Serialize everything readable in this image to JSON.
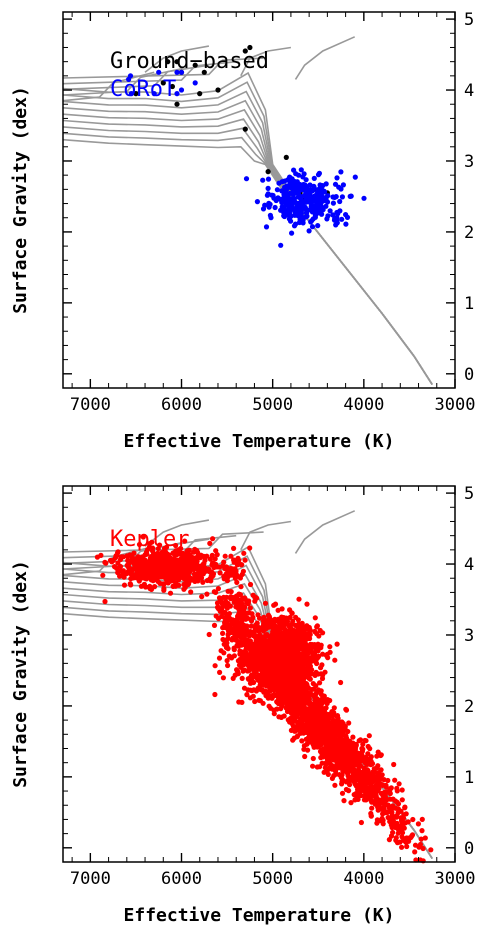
{
  "figure": {
    "panels": [
      {
        "id": "top",
        "legend": [
          {
            "text": "Ground−based",
            "color": "#000000"
          },
          {
            "text": "CoRoT",
            "color": "#0000ff"
          }
        ]
      },
      {
        "id": "bottom",
        "legend": [
          {
            "text": "Kepler",
            "color": "#ff0000"
          }
        ]
      }
    ]
  },
  "chart_data": [
    {
      "type": "scatter",
      "xlabel": "Effective Temperature (K)",
      "ylabel": "Surface Gravity (dex)",
      "xlim": [
        7300,
        3000
      ],
      "ylim": [
        5.1,
        -0.2
      ],
      "x_ticks": [
        7000,
        6000,
        5000,
        4000,
        3000
      ],
      "y_ticks": [
        0,
        1,
        2,
        3,
        4,
        5
      ],
      "x_tick_labels": [
        "7000",
        "6000",
        "5000",
        "4000",
        "3000"
      ],
      "y_tick_labels": [
        "0",
        "1",
        "2",
        "3",
        "4",
        "5"
      ],
      "grid": false,
      "legend_position": "top-left",
      "background_curves_color": "#999999",
      "series": [
        {
          "name": "Ground−based",
          "color": "#000000",
          "points": [
            [
              4850,
              2.45
            ],
            [
              4650,
              2.45
            ],
            [
              4500,
              2.45
            ],
            [
              4550,
              2.3
            ],
            [
              4700,
              2.55
            ],
            [
              4550,
              2.6
            ],
            [
              4400,
              2.55
            ],
            [
              4750,
              2.7
            ],
            [
              5050,
              2.85
            ],
            [
              4850,
              3.05
            ],
            [
              5300,
              3.45
            ],
            [
              6500,
              3.95
            ],
            [
              6050,
              3.8
            ],
            [
              5800,
              3.95
            ],
            [
              5600,
              4.0
            ],
            [
              6100,
              4.05
            ],
            [
              6200,
              4.1
            ],
            [
              5750,
              4.25
            ],
            [
              6000,
              4.25
            ],
            [
              5850,
              4.35
            ],
            [
              6150,
              4.4
            ],
            [
              6050,
              4.4
            ],
            [
              5250,
              4.6
            ],
            [
              5300,
              4.55
            ]
          ]
        },
        {
          "name": "CoRoT",
          "color": "#0000ff",
          "center": [
            4650,
            2.45
          ],
          "spread": [
            600,
            0.45
          ],
          "count": 320,
          "extra_points": [
            [
              6550,
              3.95
            ],
            [
              6580,
              4.15
            ],
            [
              6560,
              4.2
            ],
            [
              6300,
              3.95
            ],
            [
              6050,
              3.95
            ],
            [
              6000,
              4.0
            ],
            [
              6250,
              4.25
            ],
            [
              6050,
              4.25
            ],
            [
              6000,
              4.25
            ],
            [
              5850,
              4.1
            ]
          ]
        }
      ]
    },
    {
      "type": "scatter",
      "xlabel": "Effective Temperature (K)",
      "ylabel": "Surface Gravity (dex)",
      "xlim": [
        7300,
        3000
      ],
      "ylim": [
        5.1,
        -0.2
      ],
      "x_ticks": [
        7000,
        6000,
        5000,
        4000,
        3000
      ],
      "y_ticks": [
        0,
        1,
        2,
        3,
        4,
        5
      ],
      "x_tick_labels": [
        "7000",
        "6000",
        "5000",
        "4000",
        "3000"
      ],
      "y_tick_labels": [
        "0",
        "1",
        "2",
        "3",
        "4",
        "5"
      ],
      "grid": false,
      "legend_position": "top-left",
      "background_curves_color": "#999999",
      "series": [
        {
          "name": "Kepler",
          "color": "#ff0000",
          "clusters": [
            {
              "center": [
                4450,
                1.65
              ],
              "spread": [
                750,
                1.2
              ],
              "count": 1800,
              "correlated": true
            },
            {
              "center": [
                4900,
                2.7
              ],
              "spread": [
                450,
                0.6
              ],
              "count": 1200,
              "correlated": false
            },
            {
              "center": [
                6150,
                3.95
              ],
              "spread": [
                650,
                0.3
              ],
              "count": 700,
              "correlated": false
            },
            {
              "center": [
                5400,
                3.3
              ],
              "spread": [
                250,
                0.8
              ],
              "count": 200,
              "correlated": false
            }
          ]
        }
      ]
    }
  ]
}
